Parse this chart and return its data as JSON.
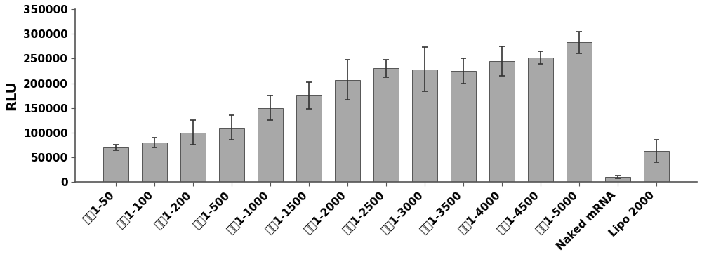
{
  "categories": [
    "处方1-50",
    "处方1-100",
    "处方1-200",
    "处方1-500",
    "处方1-1000",
    "处方1-1500",
    "处方1-2000",
    "处方1-2500",
    "处方1-3000",
    "处方1-3500",
    "处方1-4000",
    "处方1-4500",
    "处方1-5000",
    "Naked mRNA",
    "Lipo 2000"
  ],
  "values": [
    70000,
    80000,
    100000,
    110000,
    150000,
    175000,
    207000,
    230000,
    228000,
    225000,
    245000,
    252000,
    283000,
    10000,
    63000
  ],
  "errors": [
    5000,
    10000,
    25000,
    25000,
    25000,
    27000,
    40000,
    18000,
    45000,
    25000,
    30000,
    13000,
    22000,
    3000,
    23000
  ],
  "bar_color": "#a8a8a8",
  "bar_edge_color": "#555555",
  "error_color": "#333333",
  "ylabel": "RLU",
  "ylim": [
    0,
    350000
  ],
  "yticks": [
    0,
    50000,
    100000,
    150000,
    200000,
    250000,
    300000,
    350000
  ],
  "background_color": "#ffffff",
  "bar_width": 0.65,
  "tick_label_fontsize": 11,
  "ylabel_fontsize": 14,
  "ytick_fontsize": 11
}
